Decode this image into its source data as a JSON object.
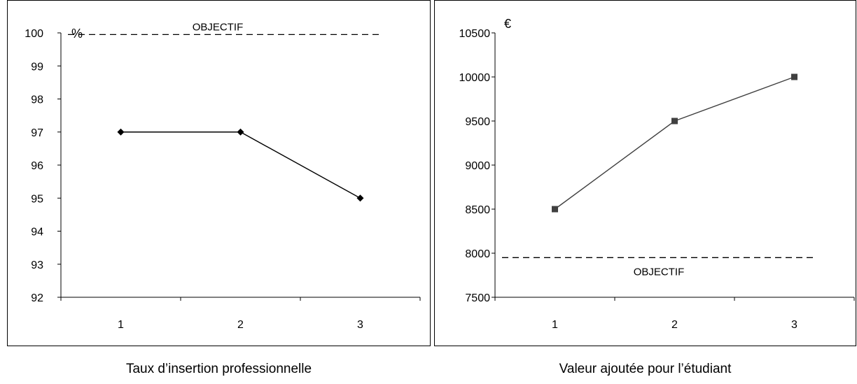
{
  "chart_data": [
    {
      "type": "line",
      "caption": "Taux d’insertion professionnelle",
      "unit_label": "%",
      "categories": [
        "1",
        "2",
        "3"
      ],
      "series": [
        {
          "values": [
            97,
            97,
            95
          ],
          "color": "#000000",
          "marker": "diamond"
        }
      ],
      "reference_line": {
        "label": "OBJECTIF",
        "value": 99.95,
        "style": "dashed"
      },
      "ylim": [
        92,
        100
      ],
      "yticks": [
        "92",
        "93",
        "94",
        "95",
        "96",
        "97",
        "98",
        "99",
        "100"
      ],
      "grid": false
    },
    {
      "type": "line",
      "caption": "Valeur ajoutée pour l’étudiant",
      "unit_label": "€",
      "categories": [
        "1",
        "2",
        "3"
      ],
      "series": [
        {
          "values": [
            8500,
            9500,
            10000
          ],
          "color": "#404040",
          "marker": "square"
        }
      ],
      "reference_line": {
        "label": "OBJECTIF",
        "value": 7950,
        "style": "dashed"
      },
      "ylim": [
        7500,
        10500
      ],
      "yticks": [
        "7500",
        "8000",
        "8500",
        "9000",
        "9500",
        "10000",
        "10500"
      ],
      "grid": false
    }
  ]
}
